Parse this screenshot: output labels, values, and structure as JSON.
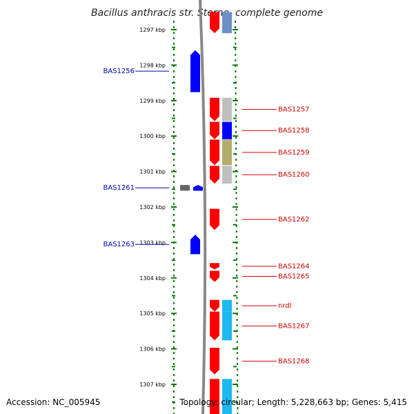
{
  "title": "Bacillus anthracis str. Sterne, complete genome",
  "accession_text": "Accession: NC_005945",
  "summary_text": "Topology: circular; Length: 5,228,663 bp; Genes: 5,415",
  "colors": {
    "forward": "#ff0000",
    "reverse": "#0000ff",
    "forward_label": "#cc0000",
    "reverse_label": "#0000aa",
    "backbone": "#888888",
    "ticks": "#007700",
    "cog_gray": "#c0c0c0",
    "cog_blue": "#0000ff",
    "cog_olive": "#b5ad6e",
    "cog_cyan": "#1cb8f0",
    "cog_steel": "#6a90c8",
    "unclassified": "#666666"
  },
  "axis": {
    "unit": "kbp",
    "ticks": [
      {
        "kbp": 1297,
        "label": "1297 kbp"
      },
      {
        "kbp": 1298,
        "label": "1298 kbp"
      },
      {
        "kbp": 1299,
        "label": "1299 kbp"
      },
      {
        "kbp": 1300,
        "label": "1300 kbp"
      },
      {
        "kbp": 1301,
        "label": "1301 kbp"
      },
      {
        "kbp": 1302,
        "label": "1302 kbp"
      },
      {
        "kbp": 1303,
        "label": "1303 kbp"
      },
      {
        "kbp": 1304,
        "label": "1304 kbp"
      },
      {
        "kbp": 1305,
        "label": "1305 kbp"
      },
      {
        "kbp": 1306,
        "label": "1306 kbp"
      },
      {
        "kbp": 1307,
        "label": "1307 kbp"
      }
    ]
  },
  "genes": [
    {
      "name": "",
      "strand": "+",
      "start": 1296.5,
      "end": 1297.1,
      "cog": "steel"
    },
    {
      "name": "BAS1256",
      "strand": "-",
      "start": 1297.58,
      "end": 1298.76,
      "cog": "none"
    },
    {
      "name": "BAS1257",
      "strand": "+",
      "start": 1298.92,
      "end": 1299.58,
      "cog": "gray"
    },
    {
      "name": "BAS1258",
      "strand": "+",
      "start": 1299.6,
      "end": 1300.09,
      "cog": "blue"
    },
    {
      "name": "BAS1259",
      "strand": "+",
      "start": 1300.1,
      "end": 1300.82,
      "cog": "olive"
    },
    {
      "name": "BAS1260",
      "strand": "+",
      "start": 1300.84,
      "end": 1301.34,
      "cog": "gray"
    },
    {
      "name": "BAS1261",
      "strand": "-",
      "start": 1301.38,
      "end": 1301.54,
      "cog": "unclassified"
    },
    {
      "name": "BAS1262",
      "strand": "+",
      "start": 1302.05,
      "end": 1302.65,
      "cog": "none"
    },
    {
      "name": "BAS1263",
      "strand": "-",
      "start": 1302.78,
      "end": 1303.33,
      "cog": "none"
    },
    {
      "name": "BAS1264",
      "strand": "+",
      "start": 1303.58,
      "end": 1303.76,
      "cog": "none"
    },
    {
      "name": "BAS1265",
      "strand": "+",
      "start": 1303.8,
      "end": 1304.11,
      "cog": "none"
    },
    {
      "name": "nrdI",
      "strand": "+",
      "start": 1304.62,
      "end": 1304.95,
      "cog": "cyan"
    },
    {
      "name": "BAS1267",
      "strand": "+",
      "start": 1304.95,
      "end": 1305.76,
      "cog": "cyan"
    },
    {
      "name": "BAS1268",
      "strand": "+",
      "start": 1305.97,
      "end": 1306.72,
      "cog": "none"
    },
    {
      "name": "",
      "strand": "+",
      "start": 1306.85,
      "end": 1308.0,
      "cog": "cyan"
    }
  ]
}
